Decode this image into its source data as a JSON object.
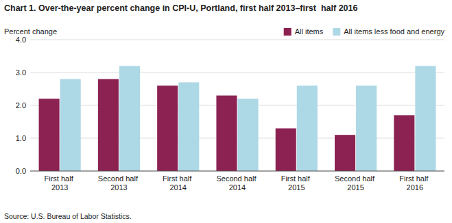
{
  "chart_data": {
    "type": "bar",
    "title": "Chart 1. Over-the-year percent change in CPI-U, Portland, first half 2013–first  half 2016",
    "y_label": "Percent change",
    "source": "Source: U.S. Bureau of Labor Statistics.",
    "categories": [
      "First half 2013",
      "Second half 2013",
      "First half 2014",
      "Second half 2014",
      "First half 2015",
      "Second half 2015",
      "First half 2016"
    ],
    "series": [
      {
        "name": "All items",
        "color": "#8B2252",
        "values": [
          2.2,
          2.8,
          2.6,
          2.3,
          1.3,
          1.1,
          1.7
        ]
      },
      {
        "name": "All items less food and energy",
        "color": "#ADD8E6",
        "values": [
          2.8,
          3.2,
          2.7,
          2.2,
          2.6,
          2.6,
          3.2
        ]
      }
    ],
    "ylim": [
      0.0,
      4.0
    ],
    "yticks": [
      {
        "value": 0.0,
        "label": "0.0"
      },
      {
        "value": 1.0,
        "label": "1.0"
      },
      {
        "value": 2.0,
        "label": "2.0"
      },
      {
        "value": 3.0,
        "label": "3.0"
      },
      {
        "value": 4.0,
        "label": "4.0"
      }
    ],
    "grid": true,
    "legend": "upper right"
  }
}
